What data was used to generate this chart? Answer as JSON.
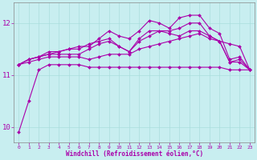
{
  "xlabel": "Windchill (Refroidissement éolien,°C)",
  "ylabel": "",
  "bg_color": "#c8eef0",
  "grid_color": "#aadddd",
  "line_color": "#aa00aa",
  "x_values": [
    0,
    1,
    2,
    3,
    4,
    5,
    6,
    7,
    8,
    9,
    10,
    11,
    12,
    13,
    14,
    15,
    16,
    17,
    18,
    19,
    20,
    21,
    22,
    23
  ],
  "series": [
    [
      9.9,
      10.5,
      11.1,
      11.2,
      11.2,
      11.2,
      11.2,
      11.15,
      11.15,
      11.15,
      11.15,
      11.15,
      11.15,
      11.15,
      11.15,
      11.15,
      11.15,
      11.15,
      11.15,
      11.15,
      11.15,
      11.1,
      11.1,
      11.1
    ],
    [
      11.2,
      11.25,
      11.3,
      11.35,
      11.35,
      11.35,
      11.35,
      11.3,
      11.35,
      11.4,
      11.4,
      11.4,
      11.5,
      11.55,
      11.6,
      11.65,
      11.7,
      11.75,
      11.8,
      11.7,
      11.65,
      11.6,
      11.55,
      11.1
    ],
    [
      11.2,
      11.3,
      11.35,
      11.4,
      11.4,
      11.4,
      11.4,
      11.5,
      11.6,
      11.65,
      11.55,
      11.45,
      11.65,
      11.75,
      11.85,
      11.8,
      11.75,
      11.85,
      11.85,
      11.75,
      11.65,
      11.25,
      11.25,
      11.1
    ],
    [
      11.2,
      11.3,
      11.35,
      11.4,
      11.45,
      11.5,
      11.5,
      11.6,
      11.65,
      11.7,
      11.55,
      11.45,
      11.7,
      11.85,
      11.85,
      11.85,
      11.9,
      12.0,
      12.0,
      11.75,
      11.65,
      11.25,
      11.3,
      11.1
    ],
    [
      11.2,
      11.3,
      11.35,
      11.45,
      11.45,
      11.5,
      11.55,
      11.55,
      11.7,
      11.85,
      11.75,
      11.7,
      11.85,
      12.05,
      12.0,
      11.9,
      12.1,
      12.15,
      12.15,
      11.9,
      11.8,
      11.3,
      11.35,
      11.1
    ]
  ],
  "ylim": [
    9.7,
    12.4
  ],
  "yticks": [
    10,
    11,
    12
  ],
  "marker": "D",
  "markersize": 2.0,
  "linewidth": 0.8
}
